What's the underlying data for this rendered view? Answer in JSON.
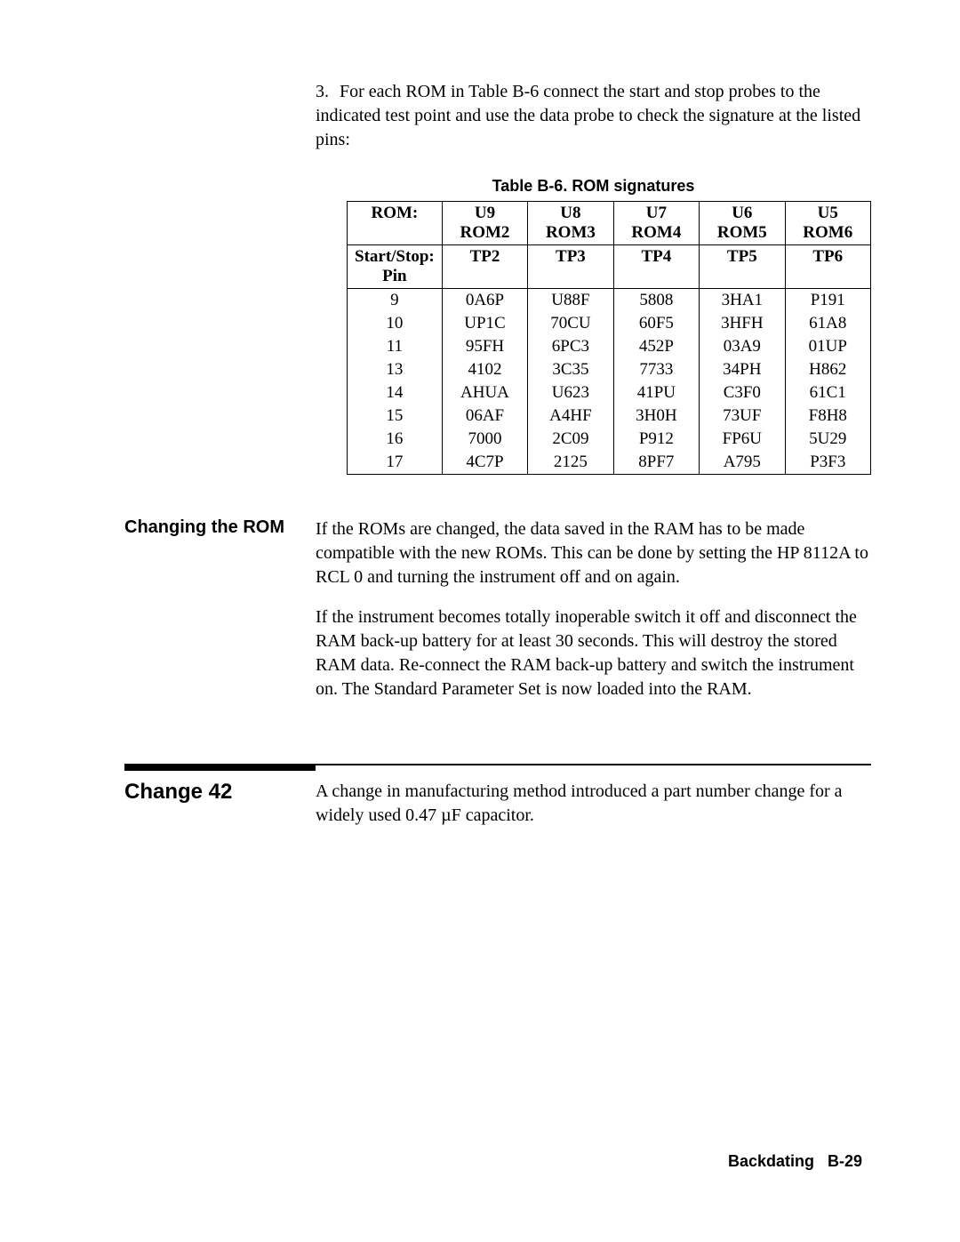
{
  "intro": {
    "number": "3.",
    "text": "For each ROM in Table B-6 connect the start and stop probes to the indicated test point and use the data probe to check the signature at the listed pins:"
  },
  "table": {
    "caption": "Table B-6. ROM signatures",
    "header": {
      "rom_label": "ROM:",
      "cols": [
        "U9 ROM2",
        "U8 ROM3",
        "U7 ROM4",
        "U6 ROM5",
        "U5 ROM6"
      ],
      "startstop_label": "Start/Stop:",
      "startstop": [
        "TP2",
        "TP3",
        "TP4",
        "TP5",
        "TP6"
      ],
      "pin_label": "Pin"
    },
    "rows": [
      {
        "pin": "9",
        "v": [
          "0A6P",
          "U88F",
          "5808",
          "3HA1",
          "P191"
        ]
      },
      {
        "pin": "10",
        "v": [
          "UP1C",
          "70CU",
          "60F5",
          "3HFH",
          "61A8"
        ]
      },
      {
        "pin": "11",
        "v": [
          "95FH",
          "6PC3",
          "452P",
          "03A9",
          "01UP"
        ]
      },
      {
        "pin": "13",
        "v": [
          "4102",
          "3C35",
          "7733",
          "34PH",
          "H862"
        ]
      },
      {
        "pin": "14",
        "v": [
          "AHUA",
          "U623",
          "41PU",
          "C3F0",
          "61C1"
        ]
      },
      {
        "pin": "15",
        "v": [
          "06AF",
          "A4HF",
          "3H0H",
          "73UF",
          "F8H8"
        ]
      },
      {
        "pin": "16",
        "v": [
          "7000",
          "2C09",
          "P912",
          "FP6U",
          "5U29"
        ]
      },
      {
        "pin": "17",
        "v": [
          "4C7P",
          "2125",
          "8PF7",
          "A795",
          "P3F3"
        ]
      }
    ]
  },
  "changing_rom": {
    "heading": "Changing the ROM",
    "p1": "If the ROMs are changed, the data saved in the RAM has to be made compatible with the new ROMs. This can be done by setting the HP 8112A to RCL 0 and turning the instrument off and on again.",
    "p2": "If the instrument becomes totally inoperable switch it off and disconnect the RAM back-up battery for at least 30 seconds. This will destroy the stored RAM data. Re-connect the RAM back-up battery and switch the instrument on. The Standard Parameter Set is now loaded into the RAM."
  },
  "change42": {
    "heading": "Change 42",
    "p1": "A change in manufacturing method introduced a part number change for a widely used 0.47 µF capacitor."
  },
  "footer": "Backdating   B-29"
}
